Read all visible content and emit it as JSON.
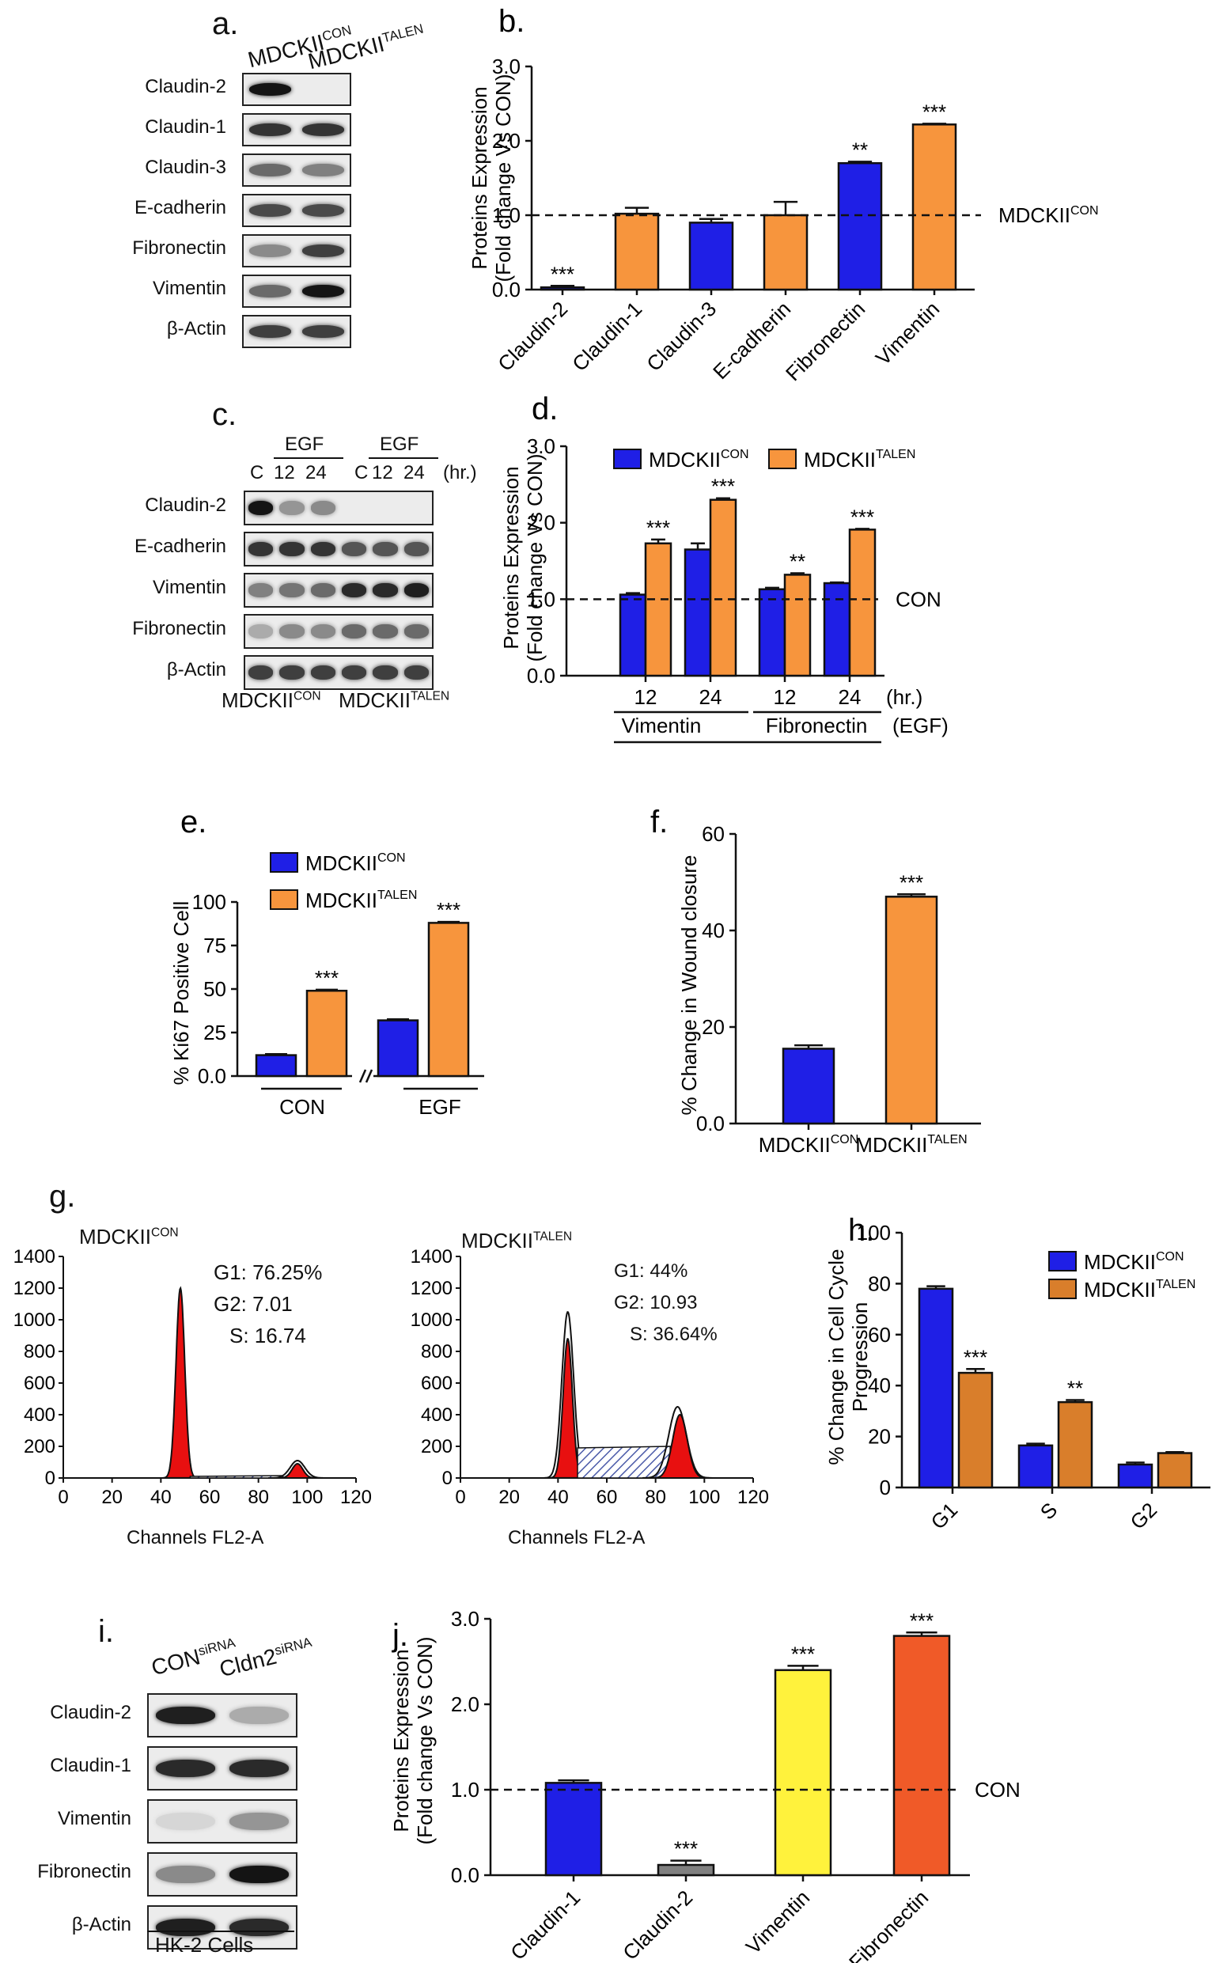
{
  "colors": {
    "blue": "#1f1fe6",
    "orange": "#f7953d",
    "darkorange": "#d97e2b",
    "red": "#e81010",
    "yellow": "#fff23c",
    "redorange": "#f05a28",
    "gray": "#808080",
    "hatch": "#4a5aa8"
  },
  "panels": {
    "a": {
      "label": "a.",
      "col1": "MDCKII",
      "col1_sup": "CON",
      "col2": "MDCKII",
      "col2_sup": "TALEN",
      "rows": [
        "Claudin-2",
        "Claudin-1",
        "Claudin-3",
        "E-cadherin",
        "Fibronectin",
        "Vimentin",
        "β-Actin"
      ]
    },
    "c": {
      "label": "c.",
      "egf1": "EGF",
      "egf2": "EGF",
      "lanes": [
        "C",
        "12",
        "24",
        "C",
        "12",
        "24"
      ],
      "unit": "(hr.)",
      "rows": [
        "Claudin-2",
        "E-cadherin",
        "Vimentin",
        "Fibronectin",
        "β-Actin"
      ],
      "group1": "MDCKII",
      "group1_sup": "CON",
      "group2": "MDCKII",
      "group2_sup": "TALEN"
    },
    "g": {
      "label": "g.",
      "hist1": {
        "name": "MDCKII",
        "sup": "CON",
        "g1": "G1:  76.25%",
        "g2": "G2:  7.01",
        "s": "S:    16.74",
        "yticks": [
          "0",
          "200",
          "400",
          "600",
          "800",
          "1000",
          "1200",
          "1400"
        ],
        "xticks": [
          "0",
          "20",
          "40",
          "60",
          "80",
          "100",
          "120"
        ],
        "xlabel": "Channels FL2-A"
      },
      "hist2": {
        "name": "MDCKII",
        "sup": "TALEN",
        "g1": "G1:  44%",
        "g2": "G2:  10.93",
        "s": "S:    36.64%",
        "yticks": [
          "0",
          "200",
          "400",
          "600",
          "800",
          "1000",
          "1200",
          "1400"
        ],
        "xticks": [
          "0",
          "20",
          "40",
          "60",
          "80",
          "100",
          "120"
        ],
        "xlabel": "Channels FL2-A"
      }
    },
    "i": {
      "label": "i.",
      "col1": "CON",
      "col1_sup": "siRNA",
      "col2": "Cldn2",
      "col2_sup": "siRNA",
      "rows": [
        "Claudin-2",
        "Claudin-1",
        "Vimentin",
        "Fibronectin",
        "β-Actin"
      ],
      "footer": "HK-2 Cells"
    }
  },
  "chart_data": [
    {
      "id": "b",
      "label": "b.",
      "type": "bar",
      "categories": [
        "Claudin-2",
        "Claudin-1",
        "Claudin-3",
        "E-cadherin",
        "Fibronectin",
        "Vimentin"
      ],
      "values": [
        0.03,
        1.02,
        0.9,
        1.0,
        1.7,
        2.22
      ],
      "errors": [
        0.02,
        0.08,
        0.05,
        0.18,
        0.02,
        0.01
      ],
      "colors": [
        "blue",
        "orange",
        "blue",
        "orange",
        "blue",
        "orange"
      ],
      "sig": [
        "***",
        "",
        "",
        "",
        "**",
        "***"
      ],
      "ylim": [
        0,
        3
      ],
      "yticks": [
        "0.0",
        "1.0",
        "2.0",
        "3.0"
      ],
      "ylabel": "Proteins Expression",
      "ylabel2": "(Fold change Vs CON)",
      "refline": 1.0,
      "ref_label": "MDCKII",
      "ref_sup": "CON"
    },
    {
      "id": "d",
      "label": "d.",
      "type": "bar",
      "categories": [
        "12",
        "24",
        "12",
        "24"
      ],
      "groups": [
        "Vimentin",
        "Fibronectin"
      ],
      "series": [
        {
          "name": "MDCKII",
          "sup": "CON",
          "color": "blue",
          "values": [
            1.06,
            1.65,
            1.13,
            1.21
          ],
          "errors": [
            0.02,
            0.08,
            0.02,
            0.01
          ],
          "sig": [
            "",
            "",
            "",
            ""
          ]
        },
        {
          "name": "MDCKII",
          "sup": "TALEN",
          "color": "orange",
          "values": [
            1.73,
            2.3,
            1.32,
            1.91
          ],
          "errors": [
            0.05,
            0.02,
            0.02,
            0.01
          ],
          "sig": [
            "***",
            "***",
            "**",
            "***"
          ]
        }
      ],
      "ylim": [
        0,
        3
      ],
      "yticks": [
        "0.0",
        "1.0",
        "2.0",
        "3.0"
      ],
      "ylabel": "Proteins Expression",
      "ylabel2": "(Fold change Vs CON)",
      "refline": 1.0,
      "ref_label": "CON",
      "unit": "(hr.)",
      "unit2": "(EGF)"
    },
    {
      "id": "e",
      "label": "e.",
      "type": "bar",
      "groups": [
        "CON",
        "EGF"
      ],
      "series": [
        {
          "name": "MDCKII",
          "sup": "CON",
          "color": "blue",
          "values": [
            12,
            32
          ],
          "errors": [
            0.6,
            0.6
          ],
          "sig": [
            "",
            ""
          ]
        },
        {
          "name": "MDCKII",
          "sup": "TALEN",
          "color": "orange",
          "values": [
            49,
            88
          ],
          "errors": [
            0.6,
            0.6
          ],
          "sig": [
            "***",
            "***"
          ]
        }
      ],
      "ylim": [
        0,
        100
      ],
      "yticks": [
        "0.0",
        "25",
        "50",
        "75",
        "100"
      ],
      "ylabel": "% Ki67 Positive Cell"
    },
    {
      "id": "f",
      "label": "f.",
      "type": "bar",
      "categories": [
        "MDCKII",
        "MDCKII"
      ],
      "cat_sups": [
        "CON",
        "TALEN"
      ],
      "values": [
        15.5,
        47
      ],
      "errors": [
        0.7,
        0.5
      ],
      "colors": [
        "blue",
        "orange"
      ],
      "sig": [
        "",
        "***"
      ],
      "ylim": [
        0,
        60
      ],
      "yticks": [
        "0.0",
        "20",
        "40",
        "60"
      ],
      "ylabel": "% Change in Wound closure"
    },
    {
      "id": "h",
      "label": "h.",
      "type": "bar",
      "categories": [
        "G1",
        "S",
        "G2"
      ],
      "series": [
        {
          "name": "MDCKII",
          "sup": "CON",
          "color": "blue",
          "values": [
            78,
            16.5,
            9
          ],
          "errors": [
            1,
            0.7,
            0.8
          ],
          "sig": [
            "",
            "",
            ""
          ]
        },
        {
          "name": "MDCKII",
          "sup": "TALEN",
          "color": "darkorange",
          "values": [
            45,
            33.5,
            13.5
          ],
          "errors": [
            1.5,
            0.8,
            0.4
          ],
          "sig": [
            "***",
            "**",
            ""
          ]
        }
      ],
      "ylim": [
        0,
        100
      ],
      "yticks": [
        "0",
        "20",
        "40",
        "60",
        "80",
        "100"
      ],
      "ylabel": "% Change in Cell Cycle",
      "ylabel2": "Progression"
    },
    {
      "id": "j",
      "label": "j.",
      "type": "bar",
      "categories": [
        "Claudin-1",
        "Claudin-2",
        "Vimentin",
        "Fibronectin"
      ],
      "values": [
        1.08,
        0.12,
        2.4,
        2.8
      ],
      "errors": [
        0.03,
        0.05,
        0.05,
        0.04
      ],
      "colors": [
        "blue",
        "gray",
        "yellow",
        "redorange"
      ],
      "sig": [
        "",
        "***",
        "***",
        "***"
      ],
      "ylim": [
        0,
        3
      ],
      "yticks": [
        "0.0",
        "1.0",
        "2.0",
        "3.0"
      ],
      "ylabel": "Proteins Expression",
      "ylabel2": "(Fold change Vs CON)",
      "refline": 1.0,
      "ref_label": "CON"
    }
  ]
}
